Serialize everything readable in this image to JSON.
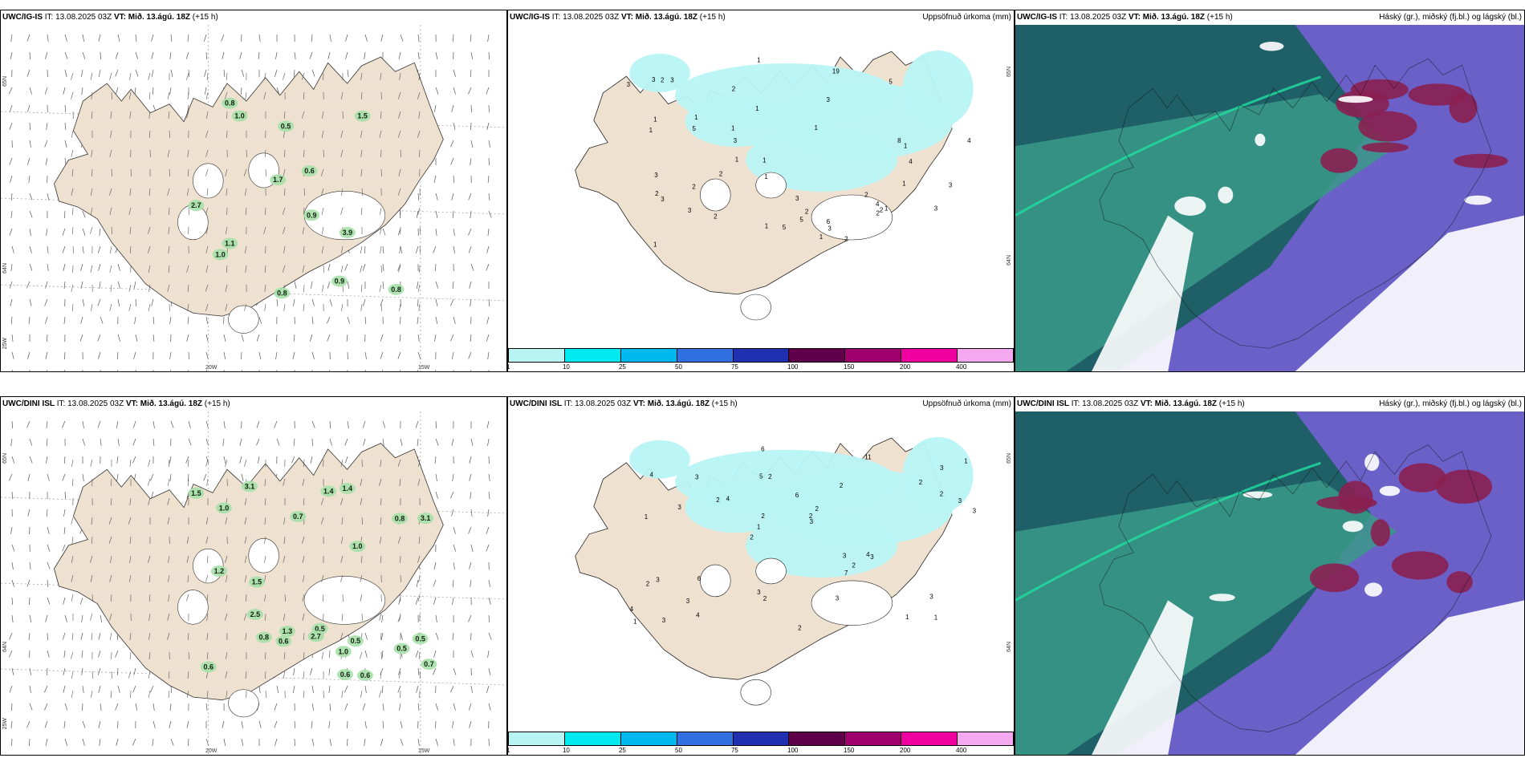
{
  "colors": {
    "land": "#efe1d0",
    "precip": "#b8f4f4",
    "dark_cloud": "#1f5f68",
    "mid_cloud": "#3a9a8a",
    "high_cloud": "#6a60c8",
    "low_cloud": "#1a8a6a",
    "purple": "#8a2050",
    "wind_green": "#a6e0a8",
    "wind_dark": "#3c8c4a"
  },
  "top": {
    "wind": {
      "model": "UWC/IG-IS",
      "it": "IT: 13.08.2025 03Z",
      "vt_label": "VT:",
      "vt": "Mið. 13.ágú. 18Z",
      "lead": "(+15 h)",
      "values": [
        "1.0",
        "0.9",
        "0.9",
        "2.7",
        "1.0",
        "0.8",
        "0.8",
        "1.7",
        "1.1",
        "0.6",
        "0.5",
        "0.8",
        "1.5",
        "3.9"
      ],
      "lat_top": "65N",
      "lat_bottom": "64N",
      "lat_corner": "25W",
      "lon_left": "20W",
      "lon_right": "15W"
    },
    "precip": {
      "model": "UWC/IG-IS",
      "it": "IT: 13.08.2025 03Z",
      "vt_label": "VT:",
      "vt": "Mið. 13.ágú. 18Z",
      "lead": "(+15 h)",
      "legend": "Uppsöfnuð úrkoma (mm)",
      "values": [
        "1",
        "2",
        "1",
        "3",
        "4",
        "3",
        "5",
        "3",
        "8",
        "1",
        "2",
        "3",
        "5",
        "2",
        "5",
        "3",
        "4",
        "2",
        "3",
        "1",
        "3",
        "4",
        "5",
        "3",
        "6",
        "2",
        "19",
        "1",
        "2",
        "1",
        "3",
        "2",
        "1",
        "3",
        "2",
        "1",
        "2",
        "1",
        "1",
        "2",
        "1",
        "3",
        "1",
        "2",
        "1",
        "3",
        "1",
        "1",
        "1"
      ],
      "lat_top": "65N",
      "lat_bottom": "64N"
    },
    "cloud": {
      "model": "UWC/IG-IS",
      "it": "IT: 13.08.2025 03Z",
      "vt_label": "VT:",
      "vt": "Mið. 13.ágú. 18Z",
      "lead": "(+15 h)",
      "legend": "Háský (gr.), miðský (fj.bl.) og lágský (bl.)"
    }
  },
  "bottom": {
    "wind": {
      "model": "UWC/DINI ISL",
      "it": "IT: 13.08.2025 03Z",
      "vt_label": "VT:",
      "vt": "Mið. 13.ágú. 18Z",
      "lead": "(+15 h)",
      "values": [
        "0.5",
        "0.5",
        "0.5",
        "1.4",
        "0.5",
        "1.0",
        "0.6",
        "0.7",
        "1.0",
        "1.0",
        "1.2",
        "1.5",
        "1.4",
        "2.7",
        "1.3",
        "0.6",
        "0.7",
        "0.8",
        "0.8",
        "3.1",
        "3.1",
        "0.6",
        "2.5",
        "1.5",
        "0.6"
      ],
      "lat_top": "65N",
      "lat_bottom": "64N",
      "lat_corner": "25W",
      "lon_left": "20W",
      "lon_right": "15W"
    },
    "precip": {
      "model": "UWC/DINI ISL",
      "it": "IT: 13.08.2025 03Z",
      "vt_label": "VT:",
      "vt": "Mið. 13.ágú. 18Z",
      "lead": "(+15 h)",
      "legend": "Uppsöfnuð úrkoma (mm)",
      "values": [
        "1",
        "1",
        "3",
        "2",
        "2",
        "3",
        "5",
        "6",
        "3",
        "4",
        "4",
        "3",
        "2",
        "2",
        "3",
        "4",
        "6",
        "3",
        "3",
        "2",
        "1",
        "3",
        "2",
        "3",
        "11",
        "6",
        "1",
        "3",
        "4",
        "2",
        "2",
        "3",
        "7",
        "4",
        "3",
        "2",
        "1",
        "2",
        "3",
        "2",
        "2",
        "1",
        "2",
        "3"
      ],
      "lat_top": "65N",
      "lat_bottom": "64N"
    },
    "cloud": {
      "model": "UWC/DINI ISL",
      "it": "IT: 13.08.2025 03Z",
      "vt_label": "VT:",
      "vt": "Mið. 13.ágú. 18Z",
      "lead": "(+15 h)",
      "legend": "Háský (gr.), miðský (fj.bl.) og lágský (bl.)"
    }
  },
  "colorbar": {
    "labels": [
      "1",
      "10",
      "25",
      "50",
      "75",
      "100",
      "150",
      "200",
      "400"
    ],
    "colors": [
      "#b8f4f4",
      "#00e8f0",
      "#00b8f0",
      "#3070e0",
      "#2030b0",
      "#60004a",
      "#a0006e",
      "#f000a0",
      "#f4a8f0"
    ]
  }
}
